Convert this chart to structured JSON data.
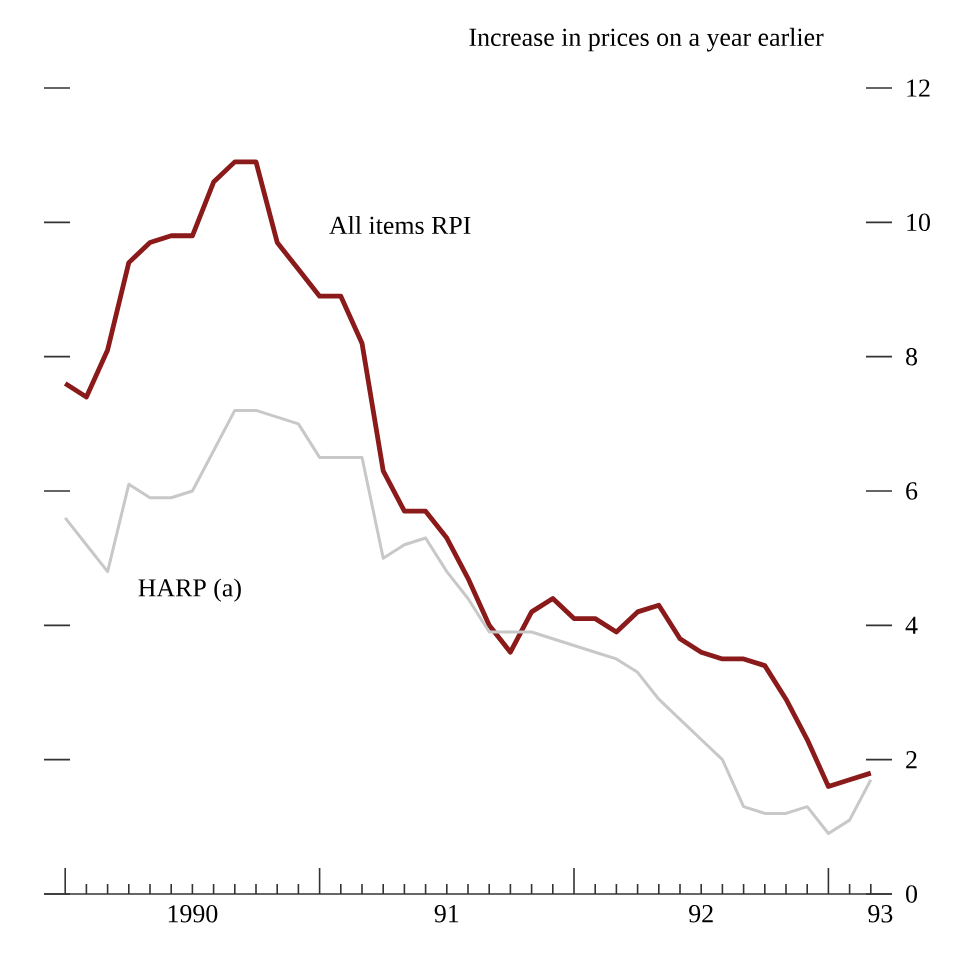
{
  "chart_data": {
    "type": "line",
    "ylabel": "Increase in prices on a year earlier",
    "x": [
      "1990-01",
      "1990-02",
      "1990-03",
      "1990-04",
      "1990-05",
      "1990-06",
      "1990-07",
      "1990-08",
      "1990-09",
      "1990-10",
      "1990-11",
      "1990-12",
      "1991-01",
      "1991-02",
      "1991-03",
      "1991-04",
      "1991-05",
      "1991-06",
      "1991-07",
      "1991-08",
      "1991-09",
      "1991-10",
      "1991-11",
      "1991-12",
      "1992-01",
      "1992-02",
      "1992-03",
      "1992-04",
      "1992-05",
      "1992-06",
      "1992-07",
      "1992-08",
      "1992-09",
      "1992-10",
      "1992-11",
      "1992-12",
      "1993-01",
      "1993-02",
      "1993-03"
    ],
    "series": [
      {
        "name": "All items RPI",
        "color": "#8b1a1a",
        "values": [
          7.6,
          7.4,
          8.1,
          9.4,
          9.7,
          9.8,
          9.8,
          10.6,
          10.9,
          10.9,
          9.7,
          9.3,
          8.9,
          8.9,
          8.2,
          6.3,
          5.7,
          5.7,
          5.3,
          4.7,
          4.0,
          3.6,
          4.2,
          4.4,
          4.1,
          4.1,
          3.9,
          4.2,
          4.3,
          3.8,
          3.6,
          3.5,
          3.5,
          3.4,
          2.9,
          2.3,
          1.6,
          1.7,
          1.8
        ]
      },
      {
        "name": "HARP (a)",
        "color": "#c8c8c8",
        "values": [
          5.6,
          5.2,
          4.8,
          6.1,
          5.9,
          5.9,
          6.0,
          6.6,
          7.2,
          7.2,
          7.1,
          7.0,
          6.5,
          6.5,
          6.5,
          5.0,
          5.2,
          5.3,
          4.8,
          4.4,
          3.9,
          3.9,
          3.9,
          3.8,
          3.7,
          3.6,
          3.5,
          3.3,
          2.9,
          2.6,
          2.3,
          2.0,
          1.3,
          1.2,
          1.2,
          1.3,
          0.9,
          1.1,
          1.7
        ]
      }
    ],
    "xlim": [
      "1989-12",
      "1993-04"
    ],
    "ylim": [
      0,
      12
    ],
    "yticks": [
      0,
      2,
      4,
      6,
      8,
      10,
      12
    ],
    "xticks": [
      {
        "value": "1990-01",
        "label": null
      },
      {
        "value": "1990-02",
        "label": null
      },
      {
        "value": "1990-03",
        "label": null
      },
      {
        "value": "1990-04",
        "label": null
      },
      {
        "value": "1990-05",
        "label": null
      },
      {
        "value": "1990-06",
        "label": null
      },
      {
        "value": "1990-07",
        "label": null
      },
      {
        "value": "1990-08",
        "label": null
      },
      {
        "value": "1990-09",
        "label": null
      },
      {
        "value": "1990-10",
        "label": null
      },
      {
        "value": "1990-11",
        "label": null
      },
      {
        "value": "1990-12",
        "label": null
      },
      {
        "value": "1991-01",
        "label": null
      },
      {
        "value": "1991-02",
        "label": null
      },
      {
        "value": "1991-03",
        "label": null
      },
      {
        "value": "1991-04",
        "label": null
      },
      {
        "value": "1991-05",
        "label": null
      },
      {
        "value": "1991-06",
        "label": null
      },
      {
        "value": "1991-07",
        "label": null
      },
      {
        "value": "1991-08",
        "label": null
      },
      {
        "value": "1991-09",
        "label": null
      },
      {
        "value": "1991-10",
        "label": null
      },
      {
        "value": "1991-11",
        "label": null
      },
      {
        "value": "1991-12",
        "label": null
      },
      {
        "value": "1992-01",
        "label": null
      },
      {
        "value": "1992-02",
        "label": null
      },
      {
        "value": "1992-03",
        "label": null
      },
      {
        "value": "1992-04",
        "label": null
      },
      {
        "value": "1992-05",
        "label": null
      },
      {
        "value": "1992-06",
        "label": null
      },
      {
        "value": "1992-07",
        "label": null
      },
      {
        "value": "1992-08",
        "label": null
      },
      {
        "value": "1992-09",
        "label": null
      },
      {
        "value": "1992-10",
        "label": null
      },
      {
        "value": "1992-11",
        "label": null
      },
      {
        "value": "1992-12",
        "label": null
      },
      {
        "value": "1993-01",
        "label": null
      },
      {
        "value": "1993-02",
        "label": null
      },
      {
        "value": "1993-03",
        "label": null
      },
      {
        "value": "1990-07",
        "label": "1990"
      },
      {
        "value": "1991-07",
        "label": "91"
      },
      {
        "value": "1992-07",
        "label": "92"
      },
      {
        "value": "1993-03-15",
        "label": "93"
      }
    ]
  }
}
